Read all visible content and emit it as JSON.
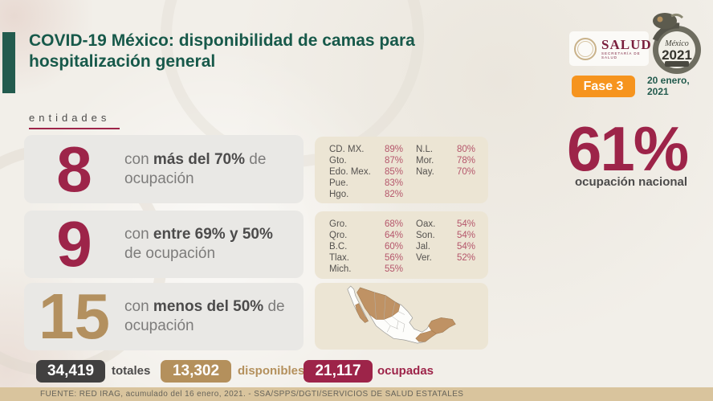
{
  "colors": {
    "teal": "#235b4e",
    "burgundy": "#9d2449",
    "gold": "#b3905f",
    "orange": "#f6941e",
    "panel_beige": "#ece5d4",
    "row_gray": "#e9e8e5",
    "footer_tan": "#d9c49d",
    "map_highlight": "#bf9264"
  },
  "header": {
    "title": "COVID-19 México: disponibilidad de camas para hospitalización general",
    "salud_logo": {
      "name": "SALUD",
      "subtext": "SECRETARÍA DE SALUD"
    },
    "logo_2021": {
      "name": "México",
      "year": "2021"
    },
    "phase_badge": "Fase 3",
    "date_line1": "20 enero,",
    "date_line2": "2021"
  },
  "section_label": "entidades",
  "rows": [
    {
      "number": "8",
      "prefix": "con ",
      "bold": "más del 70%",
      "suffix": " de ocupación"
    },
    {
      "number": "9",
      "prefix": "con ",
      "bold": "entre 69% y 50%",
      "suffix": " de ocupación"
    },
    {
      "number": "15",
      "prefix": "con ",
      "bold": "menos del 50%",
      "suffix": " de ocupación"
    }
  ],
  "panel_high": {
    "col1": [
      {
        "name": "CD. MX.",
        "pct": "89%"
      },
      {
        "name": "Gto.",
        "pct": "87%"
      },
      {
        "name": "Edo. Mex.",
        "pct": "85%"
      },
      {
        "name": "Pue.",
        "pct": "83%"
      },
      {
        "name": "Hgo.",
        "pct": "82%"
      }
    ],
    "col2": [
      {
        "name": "N.L.",
        "pct": "80%"
      },
      {
        "name": "Mor.",
        "pct": "78%"
      },
      {
        "name": "Nay.",
        "pct": "70%"
      }
    ]
  },
  "panel_mid": {
    "col1": [
      {
        "name": "Gro.",
        "pct": "68%"
      },
      {
        "name": "Qro.",
        "pct": "64%"
      },
      {
        "name": "B.C.",
        "pct": "60%"
      },
      {
        "name": "Tlax.",
        "pct": "56%"
      },
      {
        "name": "Mich.",
        "pct": "55%"
      }
    ],
    "col2": [
      {
        "name": "Oax.",
        "pct": "54%"
      },
      {
        "name": "Son.",
        "pct": "54%"
      },
      {
        "name": "Jal.",
        "pct": "54%"
      },
      {
        "name": "Ver.",
        "pct": "52%"
      }
    ]
  },
  "national": {
    "value": "61%",
    "label": "ocupación nacional"
  },
  "totals": [
    {
      "value": "34,419",
      "label": "totales",
      "pill_color": "#414040",
      "label_color": "#4c4b4b"
    },
    {
      "value": "13,302",
      "label": "disponibles",
      "pill_color": "#b4905c",
      "label_color": "#b4905c"
    },
    {
      "value": "21,117",
      "label": "ocupadas",
      "pill_color": "#9d2449",
      "label_color": "#9d2449"
    }
  ],
  "footer": {
    "source": "FUENTE: RED IRAG, acumulado del 16 enero, 2021. -  SSA/SPPS/DGTI/SERVICIOS DE SALUD ESTATALES"
  },
  "chart_data": {
    "type": "table",
    "title": "COVID-19 México: disponibilidad de camas para hospitalización general",
    "date": "20 enero, 2021",
    "phase": "Fase 3",
    "national_occupancy_pct": 61,
    "groups": [
      {
        "entities_count": 8,
        "label": "con más del 70% de ocupación",
        "states": [
          {
            "name": "CD. MX.",
            "pct": 89
          },
          {
            "name": "Gto.",
            "pct": 87
          },
          {
            "name": "Edo. Mex.",
            "pct": 85
          },
          {
            "name": "Pue.",
            "pct": 83
          },
          {
            "name": "Hgo.",
            "pct": 82
          },
          {
            "name": "N.L.",
            "pct": 80
          },
          {
            "name": "Mor.",
            "pct": 78
          },
          {
            "name": "Nay.",
            "pct": 70
          }
        ]
      },
      {
        "entities_count": 9,
        "label": "con entre 69% y 50% de ocupación",
        "states": [
          {
            "name": "Gro.",
            "pct": 68
          },
          {
            "name": "Qro.",
            "pct": 64
          },
          {
            "name": "B.C.",
            "pct": 60
          },
          {
            "name": "Tlax.",
            "pct": 56
          },
          {
            "name": "Mich.",
            "pct": 55
          },
          {
            "name": "Oax.",
            "pct": 54
          },
          {
            "name": "Son.",
            "pct": 54
          },
          {
            "name": "Jal.",
            "pct": 54
          },
          {
            "name": "Ver.",
            "pct": 52
          }
        ]
      },
      {
        "entities_count": 15,
        "label": "con menos del 50% de ocupación",
        "states": []
      }
    ],
    "beds": {
      "totales": 34419,
      "disponibles": 13302,
      "ocupadas": 21117
    }
  }
}
